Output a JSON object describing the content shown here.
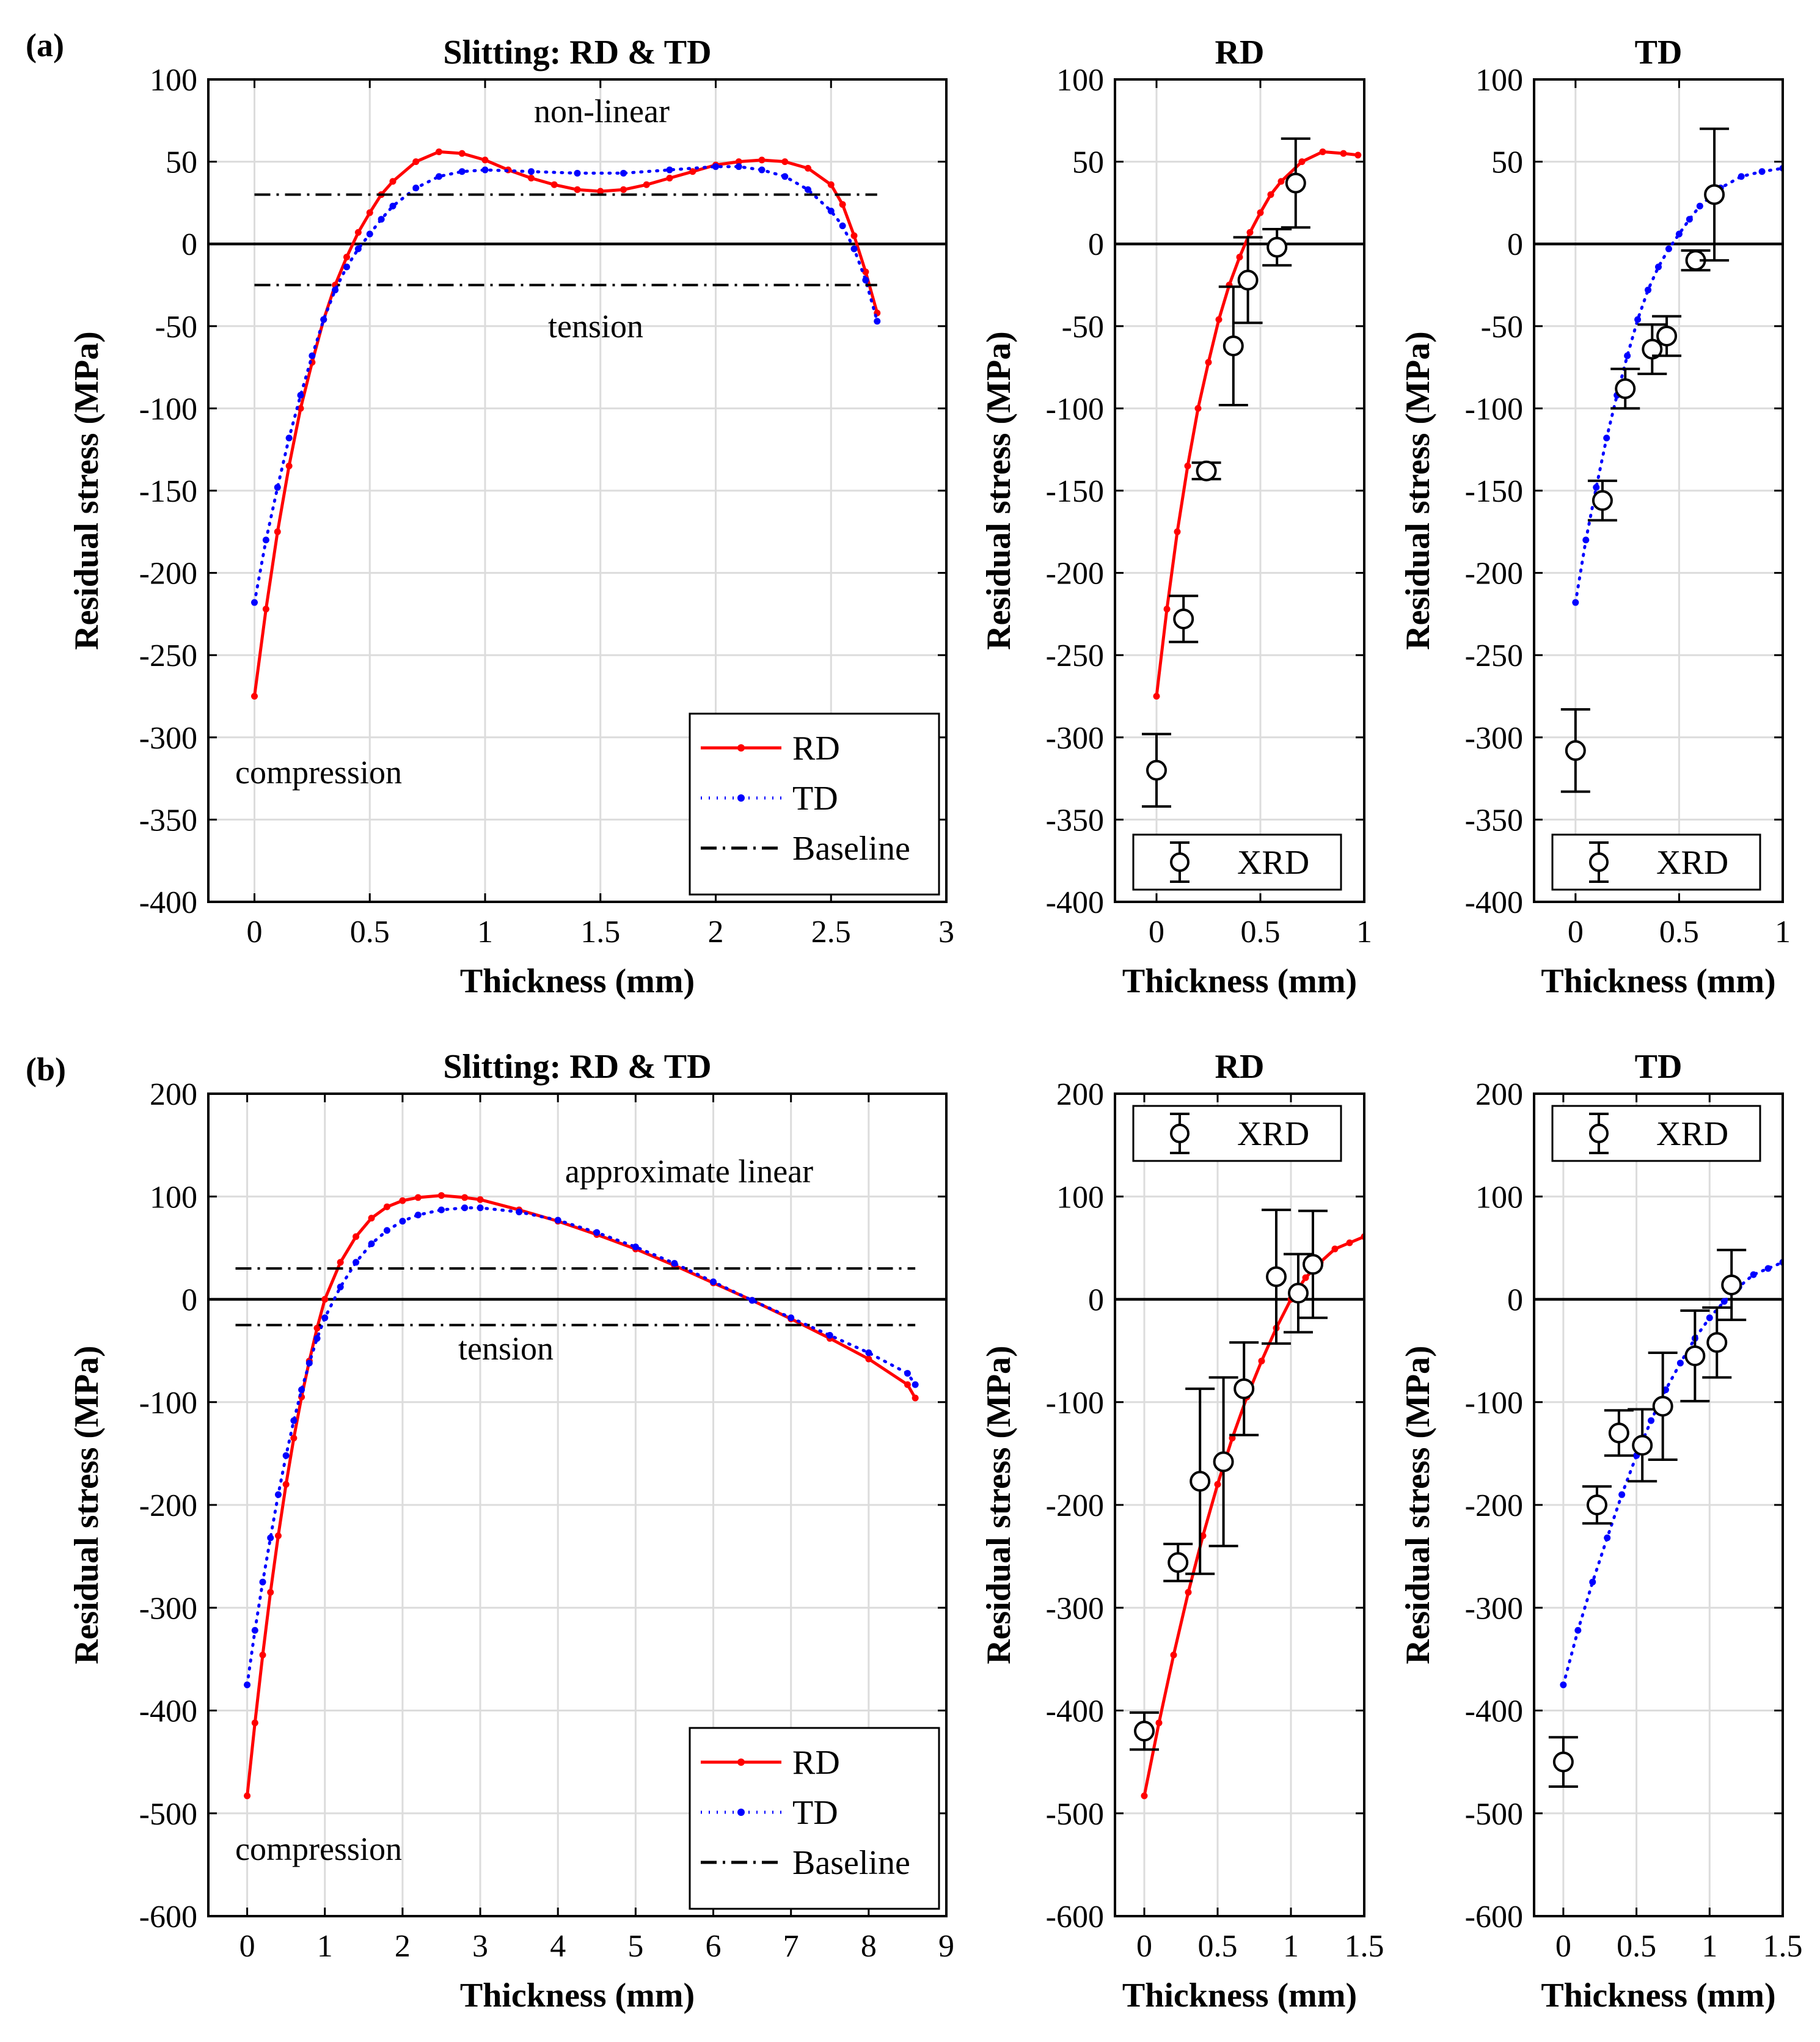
{
  "panel_labels": [
    "(a)",
    "(b)"
  ],
  "chart_data": [
    {
      "id": "a-main",
      "type": "line",
      "title": "Slitting: RD & TD",
      "xlabel": "Thickness (mm)",
      "ylabel": "Residual stress (MPa)",
      "xlim": [
        -0.2,
        3
      ],
      "ylim": [
        -400,
        100
      ],
      "xticks": [
        0,
        0.5,
        1,
        1.5,
        2,
        2.5,
        3
      ],
      "xtick_labels": [
        "0",
        "0.5",
        "1",
        "1.5",
        "2",
        "2.5",
        "3"
      ],
      "yticks": [
        -400,
        -350,
        -300,
        -250,
        -200,
        -150,
        -100,
        -50,
        0,
        50,
        100
      ],
      "ytick_labels": [
        "-400",
        "-350",
        "-300",
        "-250",
        "-200",
        "-150",
        "-100",
        "-50",
        "0",
        "50",
        "100"
      ],
      "grid": true,
      "legend_position": "bottom-right",
      "series": [
        {
          "name": "RD",
          "style": "solid",
          "color": "#ff0000",
          "x": [
            0,
            0.05,
            0.1,
            0.15,
            0.2,
            0.25,
            0.3,
            0.35,
            0.4,
            0.45,
            0.5,
            0.55,
            0.6,
            0.7,
            0.8,
            0.9,
            1.0,
            1.1,
            1.2,
            1.3,
            1.4,
            1.5,
            1.6,
            1.7,
            1.8,
            1.9,
            2.0,
            2.1,
            2.2,
            2.3,
            2.4,
            2.5,
            2.55,
            2.6,
            2.65,
            2.7
          ],
          "y": [
            -275,
            -222,
            -175,
            -135,
            -100,
            -72,
            -46,
            -25,
            -8,
            7,
            19,
            30,
            38,
            50,
            56,
            55,
            51,
            45,
            40,
            36,
            33,
            32,
            33,
            36,
            40,
            44,
            48,
            50,
            51,
            50,
            46,
            36,
            24,
            5,
            -17,
            -42
          ]
        },
        {
          "name": "TD",
          "style": "dotted",
          "color": "#0000ff",
          "x": [
            0,
            0.05,
            0.1,
            0.15,
            0.2,
            0.25,
            0.3,
            0.35,
            0.4,
            0.45,
            0.5,
            0.55,
            0.6,
            0.7,
            0.8,
            0.9,
            1.0,
            1.2,
            1.4,
            1.6,
            1.8,
            2.0,
            2.1,
            2.2,
            2.3,
            2.4,
            2.5,
            2.55,
            2.6,
            2.65,
            2.7
          ],
          "y": [
            -218,
            -180,
            -148,
            -118,
            -92,
            -68,
            -46,
            -28,
            -14,
            -3,
            6,
            15,
            23,
            34,
            41,
            44,
            45,
            44,
            43,
            43,
            45,
            47,
            47,
            45,
            41,
            33,
            20,
            11,
            -3,
            -22,
            -47
          ]
        },
        {
          "name": "Baseline",
          "style": "dashdot",
          "color": "#000000",
          "x": [
            0,
            2.7
          ],
          "y_levels": [
            30,
            -25
          ]
        }
      ],
      "annotations": [
        "non-linear",
        "tension",
        "compression"
      ]
    },
    {
      "id": "a-rd",
      "type": "scatter",
      "title": "RD",
      "xlabel": "Thickness (mm)",
      "ylabel": "Residual stress (MPa)",
      "xlim": [
        -0.2,
        1
      ],
      "ylim": [
        -400,
        100
      ],
      "xticks": [
        0,
        0.5,
        1
      ],
      "xtick_labels": [
        "0",
        "0.5",
        "1"
      ],
      "yticks": [
        -400,
        -350,
        -300,
        -250,
        -200,
        -150,
        -100,
        -50,
        0,
        50,
        100
      ],
      "ytick_labels": [
        "-400",
        "-350",
        "-300",
        "-250",
        "-200",
        "-150",
        "-100",
        "-50",
        "0",
        "50",
        "100"
      ],
      "grid": true,
      "legend_position": "bottom",
      "curve": {
        "name": "RD",
        "color": "#ff0000",
        "x": [
          0,
          0.05,
          0.1,
          0.15,
          0.2,
          0.25,
          0.3,
          0.35,
          0.4,
          0.45,
          0.5,
          0.55,
          0.6,
          0.7,
          0.8,
          0.9,
          0.97
        ],
        "y": [
          -275,
          -222,
          -175,
          -135,
          -100,
          -72,
          -46,
          -25,
          -8,
          7,
          19,
          30,
          38,
          50,
          56,
          55,
          54
        ]
      },
      "xrd": {
        "name": "XRD",
        "x": [
          0,
          0.13,
          0.24,
          0.37,
          0.44,
          0.58,
          0.67
        ],
        "y": [
          -320,
          -228,
          -138,
          -62,
          -22,
          -2,
          37
        ],
        "err": [
          22,
          14,
          5,
          36,
          26,
          11,
          27
        ]
      }
    },
    {
      "id": "a-td",
      "type": "scatter",
      "title": "TD",
      "xlabel": "Thickness (mm)",
      "ylabel": "Residual stress (MPa)",
      "xlim": [
        -0.2,
        1
      ],
      "ylim": [
        -400,
        100
      ],
      "xticks": [
        0,
        0.5,
        1
      ],
      "xtick_labels": [
        "0",
        "0.5",
        "1"
      ],
      "yticks": [
        -400,
        -350,
        -300,
        -250,
        -200,
        -150,
        -100,
        -50,
        0,
        50,
        100
      ],
      "ytick_labels": [
        "-400",
        "-350",
        "-300",
        "-250",
        "-200",
        "-150",
        "-100",
        "-50",
        "0",
        "50",
        "100"
      ],
      "grid": true,
      "legend_position": "bottom",
      "curve": {
        "name": "TD",
        "color": "#0000ff",
        "x": [
          0,
          0.05,
          0.1,
          0.15,
          0.2,
          0.25,
          0.3,
          0.35,
          0.4,
          0.45,
          0.5,
          0.55,
          0.6,
          0.7,
          0.8,
          0.9,
          1.0
        ],
        "y": [
          -218,
          -180,
          -148,
          -118,
          -92,
          -68,
          -46,
          -28,
          -14,
          -3,
          6,
          15,
          23,
          34,
          41,
          44,
          46
        ]
      },
      "xrd": {
        "name": "XRD",
        "x": [
          0,
          0.13,
          0.24,
          0.37,
          0.44,
          0.58,
          0.67
        ],
        "y": [
          -308,
          -156,
          -88,
          -64,
          -56,
          -10,
          30
        ],
        "err": [
          25,
          12,
          12,
          15,
          12,
          6,
          40
        ]
      }
    },
    {
      "id": "b-main",
      "type": "line",
      "title": "Slitting: RD & TD",
      "xlabel": "Thickness (mm)",
      "ylabel": "Residual stress (MPa)",
      "xlim": [
        -0.5,
        9
      ],
      "ylim": [
        -600,
        200
      ],
      "xticks": [
        0,
        1,
        2,
        3,
        4,
        5,
        6,
        7,
        8,
        9
      ],
      "xtick_labels": [
        "0",
        "1",
        "2",
        "3",
        "4",
        "5",
        "6",
        "7",
        "8",
        "9"
      ],
      "yticks": [
        -600,
        -500,
        -400,
        -300,
        -200,
        -100,
        0,
        100,
        200
      ],
      "ytick_labels": [
        "-600",
        "-500",
        "-400",
        "-300",
        "-200",
        "-100",
        "0",
        "100",
        "200"
      ],
      "grid": true,
      "legend_position": "bottom-right",
      "series": [
        {
          "name": "RD",
          "style": "solid",
          "color": "#ff0000",
          "x": [
            0,
            0.1,
            0.2,
            0.3,
            0.4,
            0.5,
            0.6,
            0.7,
            0.8,
            0.9,
            1.0,
            1.2,
            1.4,
            1.6,
            1.8,
            2.0,
            2.2,
            2.5,
            2.8,
            3.0,
            3.5,
            4.0,
            4.5,
            5.0,
            5.5,
            6.0,
            6.5,
            7.0,
            7.5,
            8.0,
            8.5,
            8.6
          ],
          "y": [
            -483,
            -412,
            -346,
            -285,
            -230,
            -180,
            -135,
            -95,
            -60,
            -28,
            0,
            36,
            61,
            79,
            90,
            96,
            99,
            101,
            99,
            97,
            87,
            76,
            63,
            49,
            33,
            16,
            -1,
            -19,
            -38,
            -58,
            -83,
            -96
          ]
        },
        {
          "name": "TD",
          "style": "dotted",
          "color": "#0000ff",
          "x": [
            0,
            0.1,
            0.2,
            0.3,
            0.4,
            0.5,
            0.6,
            0.7,
            0.8,
            0.9,
            1.0,
            1.2,
            1.4,
            1.6,
            1.8,
            2.0,
            2.2,
            2.5,
            2.8,
            3.0,
            3.5,
            4.0,
            4.5,
            5.0,
            5.5,
            6.0,
            6.5,
            7.0,
            7.5,
            8.0,
            8.5,
            8.6
          ],
          "y": [
            -375,
            -322,
            -275,
            -232,
            -190,
            -152,
            -118,
            -88,
            -62,
            -38,
            -18,
            12,
            36,
            54,
            67,
            76,
            82,
            87,
            89,
            89,
            85,
            77,
            65,
            51,
            35,
            17,
            -1,
            -18,
            -35,
            -52,
            -72,
            -83
          ]
        },
        {
          "name": "Baseline",
          "style": "dashdot",
          "color": "#000000",
          "x": [
            -0.15,
            8.6
          ],
          "y_levels": [
            30,
            -25
          ]
        }
      ],
      "annotations": [
        "approximate linear",
        "tension",
        "compression"
      ]
    },
    {
      "id": "b-rd",
      "type": "scatter",
      "title": "RD",
      "xlabel": "Thickness (mm)",
      "ylabel": "Residual stress (MPa)",
      "xlim": [
        -0.2,
        1.5
      ],
      "ylim": [
        -600,
        200
      ],
      "xticks": [
        0,
        0.5,
        1,
        1.5
      ],
      "xtick_labels": [
        "0",
        "0.5",
        "1",
        "1.5"
      ],
      "yticks": [
        -600,
        -500,
        -400,
        -300,
        -200,
        -100,
        0,
        100,
        200
      ],
      "ytick_labels": [
        "-600",
        "-500",
        "-400",
        "-300",
        "-200",
        "-100",
        "0",
        "100",
        "200"
      ],
      "grid": true,
      "legend_position": "top",
      "curve": {
        "name": "RD",
        "color": "#ff0000",
        "x": [
          0,
          0.1,
          0.2,
          0.3,
          0.4,
          0.5,
          0.6,
          0.7,
          0.8,
          0.9,
          1.0,
          1.1,
          1.2,
          1.3,
          1.4,
          1.5
        ],
        "y": [
          -483,
          -412,
          -346,
          -285,
          -230,
          -180,
          -135,
          -95,
          -60,
          -28,
          0,
          21,
          36,
          49,
          55,
          61
        ]
      },
      "xrd": {
        "name": "XRD",
        "x": [
          0,
          0.23,
          0.38,
          0.54,
          0.68,
          0.9,
          1.05,
          1.15
        ],
        "y": [
          -420,
          -256,
          -177,
          -158,
          -87,
          22,
          6,
          34
        ],
        "err": [
          18,
          18,
          90,
          82,
          45,
          65,
          38,
          52
        ]
      }
    },
    {
      "id": "b-td",
      "type": "scatter",
      "title": "TD",
      "xlabel": "Thickness (mm)",
      "ylabel": "Residual stress (MPa)",
      "xlim": [
        -0.2,
        1.5
      ],
      "ylim": [
        -600,
        200
      ],
      "xticks": [
        0,
        0.5,
        1,
        1.5
      ],
      "xtick_labels": [
        "0",
        "0.5",
        "1",
        "1.5"
      ],
      "yticks": [
        -600,
        -500,
        -400,
        -300,
        -200,
        -100,
        0,
        100,
        200
      ],
      "ytick_labels": [
        "-600",
        "-500",
        "-400",
        "-300",
        "-200",
        "-100",
        "0",
        "100",
        "200"
      ],
      "grid": true,
      "legend_position": "top",
      "curve": {
        "name": "TD",
        "color": "#0000ff",
        "x": [
          0,
          0.1,
          0.2,
          0.3,
          0.4,
          0.5,
          0.6,
          0.7,
          0.8,
          0.9,
          1.0,
          1.1,
          1.2,
          1.3,
          1.4,
          1.5
        ],
        "y": [
          -375,
          -322,
          -275,
          -232,
          -190,
          -152,
          -118,
          -88,
          -62,
          -38,
          -18,
          -2,
          12,
          24,
          30,
          36
        ]
      },
      "xrd": {
        "name": "XRD",
        "x": [
          0,
          0.23,
          0.38,
          0.54,
          0.68,
          0.9,
          1.05,
          1.15
        ],
        "y": [
          -450,
          -200,
          -130,
          -142,
          -104,
          -55,
          -42,
          14
        ],
        "err": [
          24,
          18,
          22,
          35,
          52,
          44,
          34,
          34
        ]
      }
    }
  ]
}
